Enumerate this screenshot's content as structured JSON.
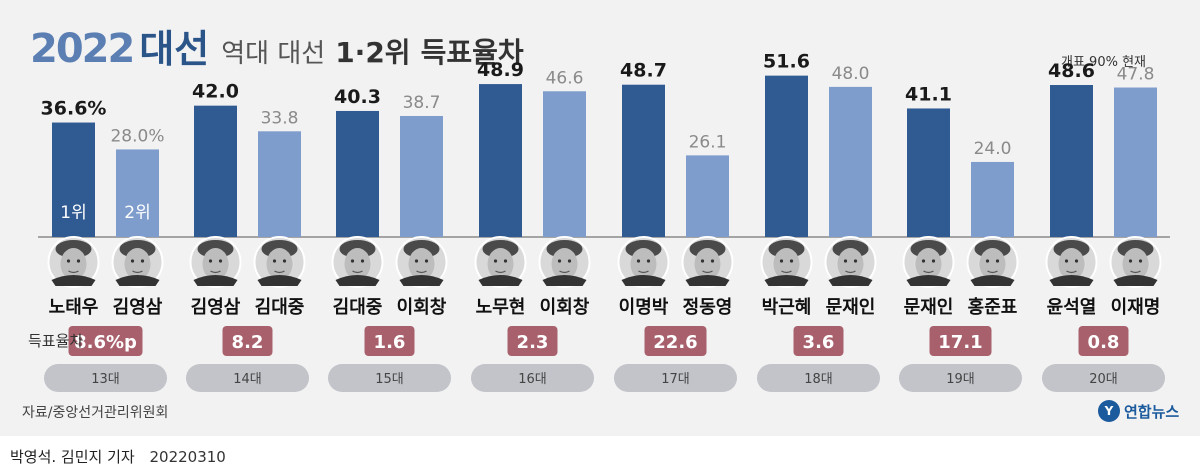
{
  "title": {
    "year": "2022",
    "big": "대선",
    "mid": "역대 대선",
    "rank": "1·2위",
    "end": "득표율차"
  },
  "status_note": "개표 90% 현재",
  "rank_labels": {
    "first": "1위",
    "second": "2위"
  },
  "diff_label": "득표율차",
  "source": "자료/중앙선거관리위원회",
  "brand": {
    "mark": "Y",
    "name": "연합뉴스"
  },
  "credit": {
    "authors": "박영석. 김민지 기자",
    "date": "20220310"
  },
  "colors": {
    "first": "#2f5a92",
    "second": "#7f9dcc",
    "diff_badge": "#a8616c",
    "election_pill": "#c2c4c9",
    "value_first": "#1a1a1a",
    "value_second": "#8a8a8a"
  },
  "chart_data": {
    "type": "bar",
    "categories": [
      "13대",
      "14대",
      "15대",
      "16대",
      "17대",
      "18대",
      "19대",
      "20대"
    ],
    "series": [
      {
        "name": "1위",
        "values": [
          36.6,
          42.0,
          40.3,
          48.9,
          48.7,
          51.6,
          41.1,
          48.6
        ]
      },
      {
        "name": "2위",
        "values": [
          28.0,
          33.8,
          38.7,
          46.6,
          26.1,
          48.0,
          24.0,
          47.8
        ]
      }
    ],
    "value_labels_first": [
      "36.6%",
      "42.0",
      "40.3",
      "48.9",
      "48.7",
      "51.6",
      "41.1",
      "48.6"
    ],
    "value_labels_second": [
      "28.0%",
      "33.8",
      "38.7",
      "46.6",
      "26.1",
      "48.0",
      "24.0",
      "47.8"
    ],
    "candidates_first": [
      "노태우",
      "김영삼",
      "김대중",
      "노무현",
      "이명박",
      "박근혜",
      "문재인",
      "윤석열"
    ],
    "candidates_second": [
      "김영삼",
      "김대중",
      "이회창",
      "이회창",
      "정동영",
      "문재인",
      "홍준표",
      "이재명"
    ],
    "differences": [
      8.6,
      8.2,
      1.6,
      2.3,
      22.6,
      3.6,
      17.1,
      0.8
    ],
    "difference_labels": [
      "8.6%p",
      "8.2",
      "1.6",
      "2.3",
      "22.6",
      "3.6",
      "17.1",
      "0.8"
    ],
    "ylim": [
      0,
      55
    ],
    "grid": false,
    "legend": "none"
  }
}
